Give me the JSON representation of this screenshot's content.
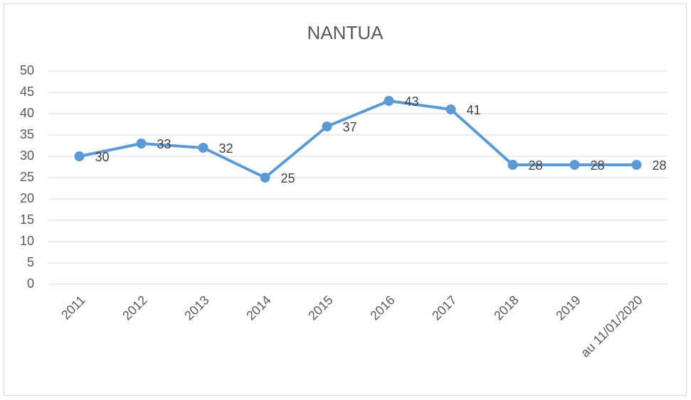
{
  "chart_data": {
    "type": "line",
    "title": "NANTUA",
    "categories": [
      "2011",
      "2012",
      "2013",
      "2014",
      "2015",
      "2016",
      "2017",
      "2018",
      "2019",
      "au 11/01/2020"
    ],
    "values": [
      30,
      33,
      32,
      25,
      37,
      43,
      41,
      28,
      28,
      28
    ],
    "color": "#5b9bd5",
    "ylim": [
      0,
      50
    ],
    "yticks": [
      0,
      5,
      10,
      15,
      20,
      25,
      30,
      35,
      40,
      45,
      50
    ],
    "grid": true
  }
}
